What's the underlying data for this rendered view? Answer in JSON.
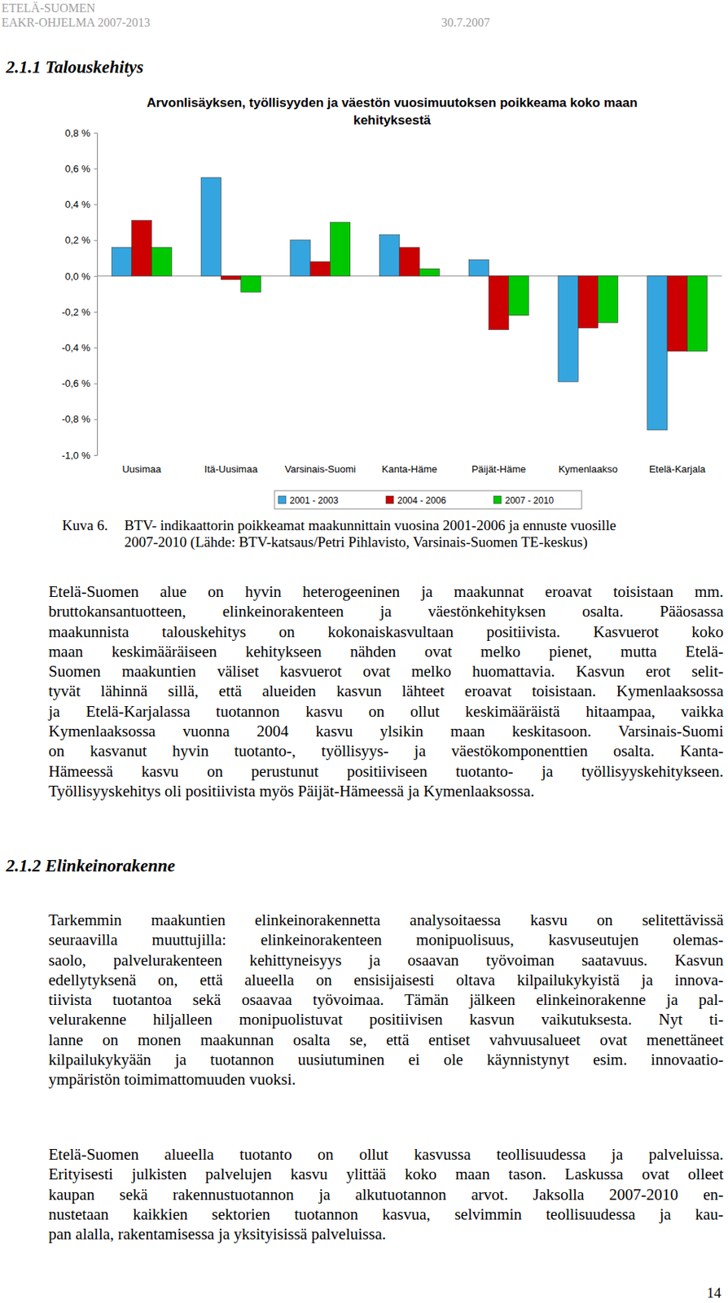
{
  "header": {
    "left": [
      "ETELÄ-SUOMEN",
      "EAKR-OHJELMA 2007-2013"
    ],
    "date": "30.7.2007"
  },
  "heading_1": "2.1.1 Talouskehitys",
  "chart_data": {
    "type": "bar",
    "title": "Arvonlisäyksen, työllisyyden ja väestön vuosimuutoksen poikkeama koko maan kehityksestä",
    "categories": [
      "Uusimaa",
      "Itä-Uusimaa",
      "Varsinais-Suomi",
      "Kanta-Häme",
      "Päijät-Häme",
      "Kymenlaakso",
      "Etelä-Karjala"
    ],
    "series": [
      {
        "name": "2001 - 2003",
        "color": "#35a5df",
        "values": [
          0.16,
          0.55,
          0.2,
          0.23,
          0.09,
          -0.59,
          -0.86
        ]
      },
      {
        "name": "2004 - 2006",
        "color": "#cc0000",
        "values": [
          0.31,
          -0.02,
          0.08,
          0.16,
          -0.3,
          -0.29,
          -0.42
        ]
      },
      {
        "name": "2007 - 2010",
        "color": "#00c800",
        "values": [
          0.16,
          -0.09,
          0.3,
          0.04,
          -0.22,
          -0.26,
          -0.42
        ]
      }
    ],
    "ylim": [
      -1.0,
      0.8
    ],
    "yticks": [
      {
        "value": -1.0,
        "label": "-1,0 %"
      },
      {
        "value": -0.8,
        "label": "-0,8 %"
      },
      {
        "value": -0.6,
        "label": "-0,6 %"
      },
      {
        "value": -0.4,
        "label": "-0,4 %"
      },
      {
        "value": -0.2,
        "label": "-0,2 %"
      },
      {
        "value": 0,
        "label": "0,0 %"
      },
      {
        "value": 0.2,
        "label": "0,2 %"
      },
      {
        "value": 0.4,
        "label": "0,4 %"
      },
      {
        "value": 0.6,
        "label": "0,6 %"
      },
      {
        "value": 0.8,
        "label": "0,8 %"
      }
    ],
    "grid": false,
    "legend": "bottom"
  },
  "caption": {
    "label": "Kuva 6.",
    "lines": [
      "BTV- indikaattorin poikkeamat maakunnittain vuosina 2001-2006 ja ennuste vuosille",
      "2007-2010 (Lähde: BTV-katsaus/Petri Pihlavisto, Varsinais-Suomen TE-keskus)"
    ]
  },
  "paragraphs_1": [
    [
      "Etelä-Suomen alue on hyvin heterogeeninen ja maakunnat eroavat toisistaan mm.",
      "bruttokansantuotteen, elinkeinorakenteen ja väestönkehityksen osalta. Pääosassa",
      "maakunnista talouskehitys on kokonaiskasvultaan positiivista. Kasvuerot koko",
      "maan keskimääräiseen kehitykseen nähden ovat melko pienet, mutta Etelä-",
      "Suomen maakuntien väliset kasvuerot ovat melko huomattavia. Kasvun erot selit-",
      "tyvät lähinnä sillä, että alueiden kasvun lähteet eroavat toisistaan. Kymenlaaksossa",
      "ja Etelä-Karjalassa tuotannon kasvu on ollut keskimääräistä hitaampaa, vaikka",
      "Kymenlaaksossa vuonna 2004 kasvu ylsikin maan keskitasoon. Varsinais-Suomi",
      "on kasvanut hyvin tuotanto-, työllisyys- ja väestökomponenttien osalta. Kanta-",
      "Hämeessä kasvu on perustunut positiiviseen tuotanto- ja työllisyyskehitykseen.",
      "Työllisyyskehitys oli positiivista myös Päijät-Hämeessä ja Kymenlaaksossa."
    ]
  ],
  "heading_2": "2.1.2 Elinkeinorakenne",
  "paragraphs_2": [
    [
      "Tarkemmin maakuntien elinkeinorakennetta analysoitaessa kasvu on selitettävissä",
      "seuraavilla muuttujilla: elinkeinorakenteen monipuolisuus, kasvuseutujen olemas-",
      "saolo, palvelurakenteen kehittyneisyys ja osaavan työvoiman saatavuus. Kasvun",
      "edellytyksenä on, että alueella on ensisijaisesti oltava kilpailukykyistä ja innova-",
      "tiivista tuotantoa sekä osaavaa työvoimaa. Tämän jälkeen elinkeinorakenne ja pal-",
      "velurakenne hiljalleen monipuolistuvat positiivisen kasvun vaikutuksesta. Nyt ti-",
      "lanne on monen maakunnan osalta se, että entiset vahvuusalueet ovat menettäneet",
      "kilpailukykyään ja tuotannon uusiutuminen ei ole käynnistynyt esim. innovaatio-",
      "ympäristön toimimattomuuden vuoksi."
    ],
    [
      "Etelä-Suomen alueella tuotanto on ollut kasvussa teollisuudessa ja palveluissa.",
      "Erityisesti julkisten palvelujen kasvu ylittää koko maan tason. Laskussa ovat olleet",
      "kaupan sekä rakennustuotannon ja alkutuotannon arvot. Jaksolla 2007-2010 en-",
      "nustetaan kaikkien sektorien tuotannon kasvua, selvimmin teollisuudessa ja kau-",
      "pan alalla, rakentamisessa ja yksityisissä palveluissa."
    ]
  ],
  "page_number": "14"
}
